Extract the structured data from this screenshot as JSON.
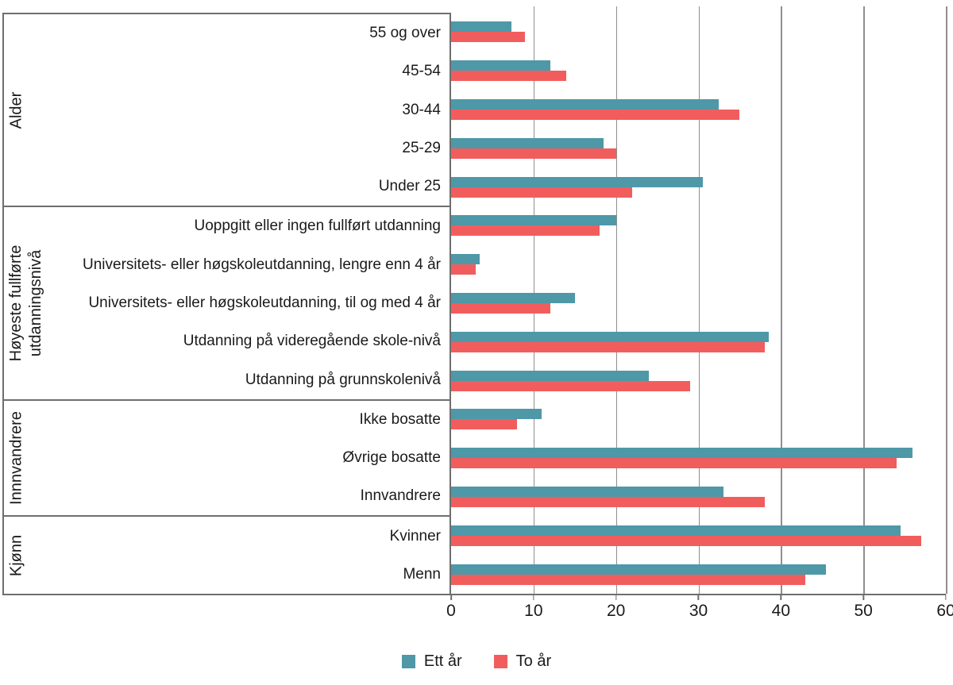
{
  "chart_data": {
    "type": "bar",
    "orientation": "horizontal",
    "title": "",
    "xlabel": "",
    "ylabel": "",
    "xlim": [
      0,
      60
    ],
    "x_ticks": [
      0,
      10,
      20,
      30,
      40,
      50,
      60
    ],
    "grid": "vertical",
    "legend_position": "bottom-center",
    "series": [
      {
        "name": "Ett år",
        "color": "#4E98A8"
      },
      {
        "name": "To år",
        "color": "#F15D5D"
      }
    ],
    "groups": [
      {
        "label_lines": [
          "Alder"
        ],
        "rows": [
          {
            "category": "55 og over",
            "values": [
              7.3,
              9
            ]
          },
          {
            "category": "45-54",
            "values": [
              12,
              14
            ]
          },
          {
            "category": "30-44",
            "values": [
              32.5,
              35
            ]
          },
          {
            "category": "25-29",
            "values": [
              18.5,
              20
            ]
          },
          {
            "category": "Under 25",
            "values": [
              30.5,
              22
            ]
          }
        ]
      },
      {
        "label_lines": [
          "Høyeste fullførte",
          "utdanningsnivå"
        ],
        "rows": [
          {
            "category": "Uoppgitt eller ingen fullført utdanning",
            "values": [
              20,
              18
            ]
          },
          {
            "category": "Universitets- eller høgskoleutdanning, lengre enn 4 år",
            "values": [
              3.5,
              3
            ]
          },
          {
            "category": "Universitets- eller høgskoleutdanning, til og med 4 år",
            "values": [
              15,
              12
            ]
          },
          {
            "category": "Utdanning på videregående skole-nivå",
            "values": [
              38.5,
              38
            ]
          },
          {
            "category": "Utdanning på grunnskolenivå",
            "values": [
              24,
              29
            ]
          }
        ]
      },
      {
        "label_lines": [
          "Innnvandrere"
        ],
        "rows": [
          {
            "category": "Ikke bosatte",
            "values": [
              11,
              8
            ]
          },
          {
            "category": "Øvrige bosatte",
            "values": [
              56,
              54
            ]
          },
          {
            "category": "Innvandrere",
            "values": [
              33,
              38
            ]
          }
        ]
      },
      {
        "label_lines": [
          "Kjønn"
        ],
        "rows": [
          {
            "category": "Kvinner",
            "values": [
              54.5,
              57
            ]
          },
          {
            "category": "Menn",
            "values": [
              45.5,
              43
            ]
          }
        ]
      }
    ]
  },
  "legend": {
    "items": [
      {
        "label": "Ett år",
        "color": "#4E98A8"
      },
      {
        "label": "To år",
        "color": "#F15D5D"
      }
    ]
  }
}
